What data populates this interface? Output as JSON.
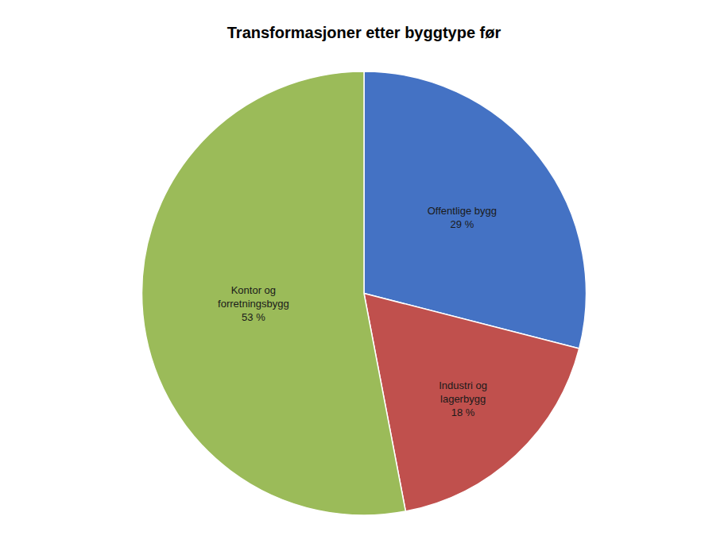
{
  "chart_data": {
    "type": "pie",
    "title": "Transformasjoner etter byggtype før",
    "categories": [
      "Offentlige bygg",
      "Industri og\nlagerbygg",
      "Kontor og\nforretningsbygg"
    ],
    "values": [
      29,
      18,
      53
    ],
    "value_labels": [
      "29 %",
      "18 %",
      "53 %"
    ],
    "colors": [
      "#4472C4",
      "#C0504D",
      "#9BBB59"
    ],
    "data_labels": true
  }
}
